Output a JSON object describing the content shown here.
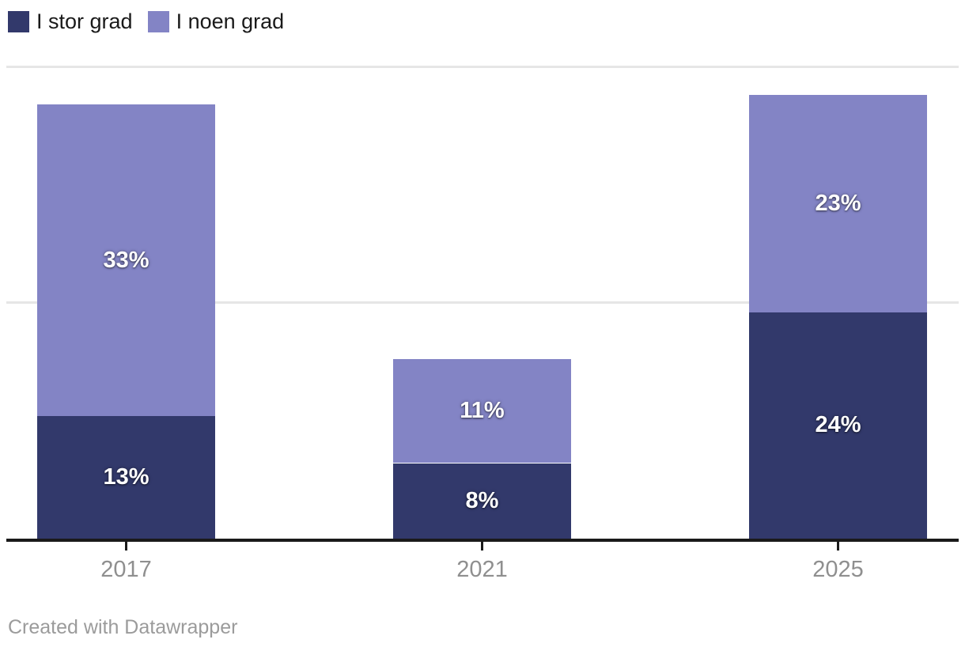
{
  "legend": {
    "items": [
      {
        "label": "I stor grad",
        "color": "#32396b"
      },
      {
        "label": "I noen grad",
        "color": "#8384c5"
      }
    ]
  },
  "chart_data": {
    "type": "bar",
    "stacked": true,
    "categories": [
      "2017",
      "2021",
      "2025"
    ],
    "series": [
      {
        "name": "I stor grad",
        "color": "#32396b",
        "values": [
          13,
          8,
          24
        ]
      },
      {
        "name": "I noen grad",
        "color": "#8384c5",
        "values": [
          33,
          11,
          23
        ]
      }
    ],
    "totals": [
      46,
      19,
      47
    ],
    "value_suffix": "%",
    "title": "",
    "xlabel": "",
    "ylabel": "",
    "ylim": [
      0,
      50
    ],
    "gridline_values": [
      25,
      50
    ],
    "grid": true,
    "legend_position": "top-left",
    "value_labels": "inside-white"
  },
  "footer": {
    "credit": "Created with Datawrapper"
  },
  "colors": {
    "axis": "#1a1a1a",
    "gridline": "#e6e6e6",
    "category_label": "#8f8f8f",
    "credit_text": "#9b9b9b",
    "background": "#ffffff"
  }
}
